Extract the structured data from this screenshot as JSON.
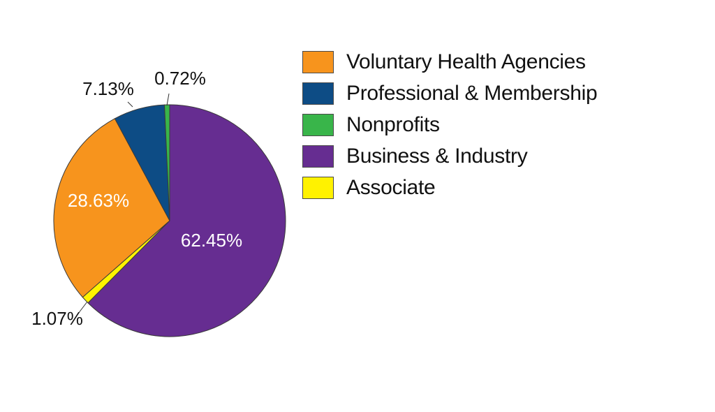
{
  "chart_data": {
    "type": "pie",
    "start_angle_deg": 0,
    "direction": "clockwise",
    "slices": [
      {
        "label": "Business & Industry",
        "value": 62.45,
        "display": "62.45%",
        "color": "#662d91",
        "label_color": "#ffffff",
        "label_inside": true
      },
      {
        "label": "Associate",
        "value": 1.07,
        "display": "1.07%",
        "color": "#fff200",
        "label_color": "#111111",
        "label_inside": false
      },
      {
        "label": "Voluntary Health Agencies",
        "value": 28.63,
        "display": "28.63%",
        "color": "#f7941d",
        "label_color": "#ffffff",
        "label_inside": true
      },
      {
        "label": "Professional & Membership",
        "value": 7.13,
        "display": "7.13%",
        "color": "#0d4c85",
        "label_color": "#111111",
        "label_inside": false
      },
      {
        "label": "Nonprofits",
        "value": 0.72,
        "display": "0.72%",
        "color": "#39b54a",
        "label_color": "#111111",
        "label_inside": false
      }
    ],
    "legend": {
      "position": "right",
      "items": [
        {
          "label": "Voluntary Health Agencies",
          "color": "#f7941d"
        },
        {
          "label": "Professional & Membership",
          "color": "#0d4c85"
        },
        {
          "label": "Nonprofits",
          "color": "#39b54a"
        },
        {
          "label": "Business & Industry",
          "color": "#662d91"
        },
        {
          "label": "Associate",
          "color": "#fff200"
        }
      ]
    }
  }
}
